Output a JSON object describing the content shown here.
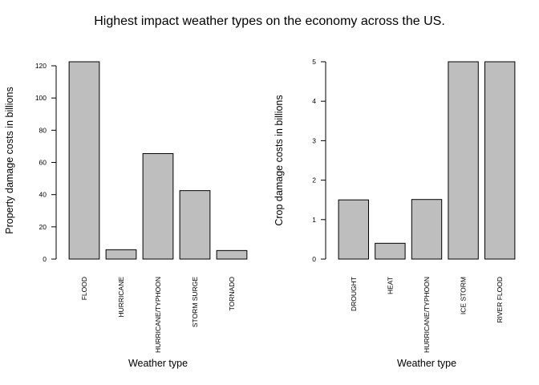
{
  "figure": {
    "title": "Highest impact weather types on the economy across the US."
  },
  "chart_data": [
    {
      "type": "bar",
      "title": "",
      "xlabel": "Weather type",
      "ylabel": "Property damage costs in billions",
      "categories": [
        "FLOOD",
        "HURRICANE",
        "HURRICANE/TYPHOON",
        "STORM SURGE",
        "TORNADO"
      ],
      "values": [
        122.5,
        5.8,
        65.5,
        42.5,
        5.3
      ],
      "ylim": [
        0,
        122.5
      ],
      "yticks": [
        0,
        20,
        40,
        60,
        80,
        100,
        120
      ],
      "bar_color": "#bebebe",
      "grid": false
    },
    {
      "type": "bar",
      "title": "",
      "xlabel": "Weather type",
      "ylabel": "Crop damage costs in billions",
      "categories": [
        "DROUGHT",
        "HEAT",
        "HURRICANE/TYPHOON",
        "ICE STORM",
        "RIVER FLOOD"
      ],
      "values": [
        1.5,
        0.4,
        1.51,
        5.0,
        5.0
      ],
      "ylim": [
        0,
        5
      ],
      "yticks": [
        0,
        1,
        2,
        3,
        4,
        5
      ],
      "bar_color": "#bebebe",
      "grid": false
    }
  ]
}
